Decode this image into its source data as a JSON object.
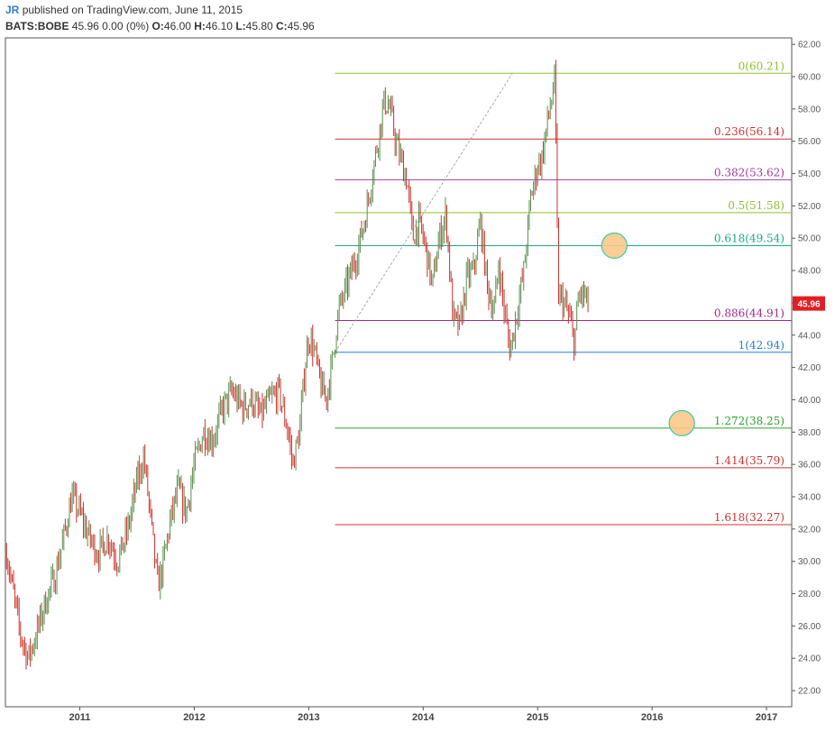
{
  "header": {
    "author": "JR",
    "published": "published on TradingView.com, June 11, 2015",
    "symbol": "BATS:BOBE",
    "last": "45.96",
    "change": "0.00 (0%)",
    "open_label": "O:",
    "open": "46.00",
    "high_label": "H:",
    "high": "46.10",
    "low_label": "L:",
    "low": "45.80",
    "close_label": "C:",
    "close": "45.96"
  },
  "chart_data": {
    "type": "line",
    "title": "",
    "xlabel": "",
    "ylabel": "",
    "x_ticks": [
      "2011",
      "2012",
      "2013",
      "2014",
      "2015",
      "2016",
      "2017"
    ],
    "x_tick_years": [
      2011,
      2012,
      2013,
      2014,
      2015,
      2016,
      2017
    ],
    "xlim": [
      2010.35,
      2017.22
    ],
    "ylim": [
      21.0,
      62.4
    ],
    "y_ticks": [
      22,
      24,
      26,
      28,
      30,
      32,
      34,
      36,
      38,
      40,
      42,
      44,
      46,
      48,
      50,
      52,
      54,
      56,
      58,
      60,
      62
    ],
    "last_price": 45.96,
    "last_price_label": "45.96",
    "last_price_color": "#e31e24",
    "grid": false,
    "price_series": {
      "name": "",
      "up_color": "#5a8f4e",
      "down_color": "#d0302a",
      "x": [
        2010.36,
        2010.42,
        2010.48,
        2010.55,
        2010.62,
        2010.7,
        2010.78,
        2010.86,
        2010.93,
        2011.0,
        2011.08,
        2011.16,
        2011.25,
        2011.33,
        2011.42,
        2011.5,
        2011.56,
        2011.62,
        2011.68,
        2011.72,
        2011.79,
        2011.86,
        2011.93,
        2012.0,
        2012.08,
        2012.16,
        2012.25,
        2012.33,
        2012.42,
        2012.5,
        2012.58,
        2012.66,
        2012.74,
        2012.82,
        2012.86,
        2012.92,
        2012.96,
        2013.0,
        2013.05,
        2013.1,
        2013.15,
        2013.2,
        2013.26,
        2013.33,
        2013.42,
        2013.5,
        2013.58,
        2013.66,
        2013.71,
        2013.76,
        2013.8,
        2013.86,
        2013.91,
        2013.96,
        2014.02,
        2014.08,
        2014.14,
        2014.2,
        2014.26,
        2014.32,
        2014.38,
        2014.44,
        2014.5,
        2014.56,
        2014.62,
        2014.66,
        2014.7,
        2014.76,
        2014.82,
        2014.88,
        2014.94,
        2015.0,
        2015.04,
        2015.08,
        2015.12,
        2015.15,
        2015.18,
        2015.23,
        2015.28,
        2015.32,
        2015.36,
        2015.4,
        2015.44
      ],
      "y": [
        30.5,
        28.0,
        25.5,
        24.0,
        25.5,
        27.5,
        29.0,
        31.5,
        34.0,
        33.0,
        31.5,
        30.5,
        31.5,
        30.0,
        32.0,
        35.0,
        36.5,
        32.5,
        28.5,
        29.5,
        32.5,
        34.5,
        33.0,
        36.0,
        38.0,
        37.5,
        39.5,
        40.5,
        39.5,
        40.0,
        39.0,
        40.0,
        40.5,
        38.0,
        36.0,
        38.0,
        41.5,
        44.0,
        43.0,
        41.0,
        40.0,
        42.0,
        45.5,
        47.0,
        49.0,
        51.5,
        55.0,
        58.5,
        58.0,
        56.0,
        55.0,
        53.5,
        50.0,
        51.0,
        49.5,
        47.0,
        50.0,
        51.5,
        45.0,
        44.5,
        47.5,
        48.0,
        51.0,
        47.0,
        45.5,
        48.5,
        46.0,
        43.0,
        45.5,
        48.0,
        52.5,
        54.5,
        55.0,
        57.0,
        58.5,
        60.0,
        46.5,
        46.0,
        45.0,
        43.5,
        46.5,
        46.5,
        46.0
      ]
    },
    "trend_line": {
      "x": [
        2013.23,
        2014.78
      ],
      "y": [
        42.94,
        60.21
      ],
      "color": "#aaaaaa"
    },
    "fib_levels": [
      {
        "ratio": 0,
        "value": 60.21,
        "label": "0(60.21)",
        "color": "#8fbf2f"
      },
      {
        "ratio": 0.236,
        "value": 56.14,
        "label": "0.236(56.14)",
        "color": "#cc3333"
      },
      {
        "ratio": 0.382,
        "value": 53.62,
        "label": "0.382(53.62)",
        "color": "#9c3da0"
      },
      {
        "ratio": 0.5,
        "value": 51.58,
        "label": "0.5(51.58)",
        "color": "#8fbf2f"
      },
      {
        "ratio": 0.618,
        "value": 49.54,
        "label": "0.618(49.54)",
        "color": "#1aaa88"
      },
      {
        "ratio": 0.886,
        "value": 44.91,
        "label": "0.886(44.91)",
        "color": "#a02a8a"
      },
      {
        "ratio": 1,
        "value": 42.94,
        "label": "1(42.94)",
        "color": "#2a7fd0"
      },
      {
        "ratio": 1.272,
        "value": 38.25,
        "label": "1.272(38.25)",
        "color": "#2fa02f"
      },
      {
        "ratio": 1.414,
        "value": 35.79,
        "label": "1.414(35.79)",
        "color": "#cc3333"
      },
      {
        "ratio": 1.618,
        "value": 32.27,
        "label": "1.618(32.27)",
        "color": "#cc3333"
      }
    ],
    "fib_x_start": 2013.23,
    "targets": [
      {
        "x": 2015.67,
        "y": 49.54,
        "fill": "#f9c98a",
        "stroke": "#3cc9a8"
      },
      {
        "x": 2016.26,
        "y": 38.55,
        "fill": "#f9c98a",
        "stroke": "#3cc9a8"
      }
    ]
  }
}
